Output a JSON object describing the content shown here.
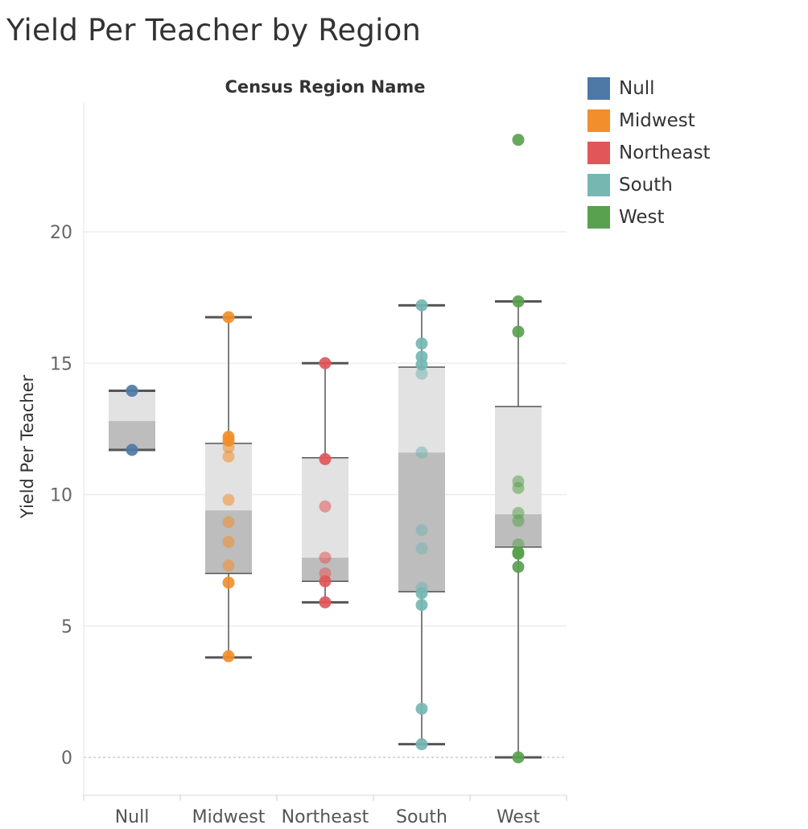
{
  "title": "Yield Per Teacher by Region",
  "chart_data": {
    "type": "box",
    "title": "Yield Per Teacher by Region",
    "column_header": "Census Region Name",
    "ylabel": "Yield Per Teacher",
    "xlabel": "",
    "ylim": [
      -1.5,
      25
    ],
    "yticks": [
      0,
      5,
      10,
      15,
      20
    ],
    "grid": true,
    "legend_position": "top-right",
    "categories": [
      "Null",
      "Midwest",
      "Northeast",
      "South",
      "West"
    ],
    "colors": {
      "Null": "#4e79a7",
      "Midwest": "#f28e2b",
      "Northeast": "#e15759",
      "South": "#76b7b2",
      "West": "#59a14f"
    },
    "boxes": [
      {
        "name": "Null",
        "min": 11.7,
        "q1": 11.7,
        "median": 12.8,
        "q3": 13.95,
        "max": 13.95
      },
      {
        "name": "Midwest",
        "min": 3.8,
        "q1": 7.0,
        "median": 9.4,
        "q3": 11.95,
        "max": 16.75
      },
      {
        "name": "Northeast",
        "min": 5.9,
        "q1": 6.7,
        "median": 7.6,
        "q3": 11.4,
        "max": 15.0
      },
      {
        "name": "South",
        "min": 0.5,
        "q1": 6.3,
        "median": 11.6,
        "q3": 14.85,
        "max": 17.2
      },
      {
        "name": "West",
        "min": 0.0,
        "q1": 8.0,
        "median": 9.25,
        "q3": 13.35,
        "max": 17.35
      }
    ],
    "points": [
      {
        "name": "Null",
        "values": [
          13.95,
          11.7
        ]
      },
      {
        "name": "Midwest",
        "values": [
          16.75,
          12.2,
          12.05,
          11.8,
          11.45,
          9.8,
          8.95,
          8.2,
          7.3,
          6.65,
          3.85
        ]
      },
      {
        "name": "Northeast",
        "values": [
          15.0,
          11.35,
          9.55,
          7.6,
          7.0,
          6.7,
          5.9
        ]
      },
      {
        "name": "South",
        "values": [
          17.2,
          15.75,
          15.25,
          14.95,
          14.6,
          11.6,
          8.65,
          7.95,
          6.45,
          6.25,
          5.8,
          1.85,
          0.5
        ]
      },
      {
        "name": "West",
        "values": [
          23.5,
          17.35,
          16.2,
          10.5,
          10.25,
          9.3,
          9.0,
          8.1,
          7.8,
          7.75,
          7.25,
          0.0
        ]
      }
    ],
    "legend": [
      "Null",
      "Midwest",
      "Northeast",
      "South",
      "West"
    ]
  }
}
